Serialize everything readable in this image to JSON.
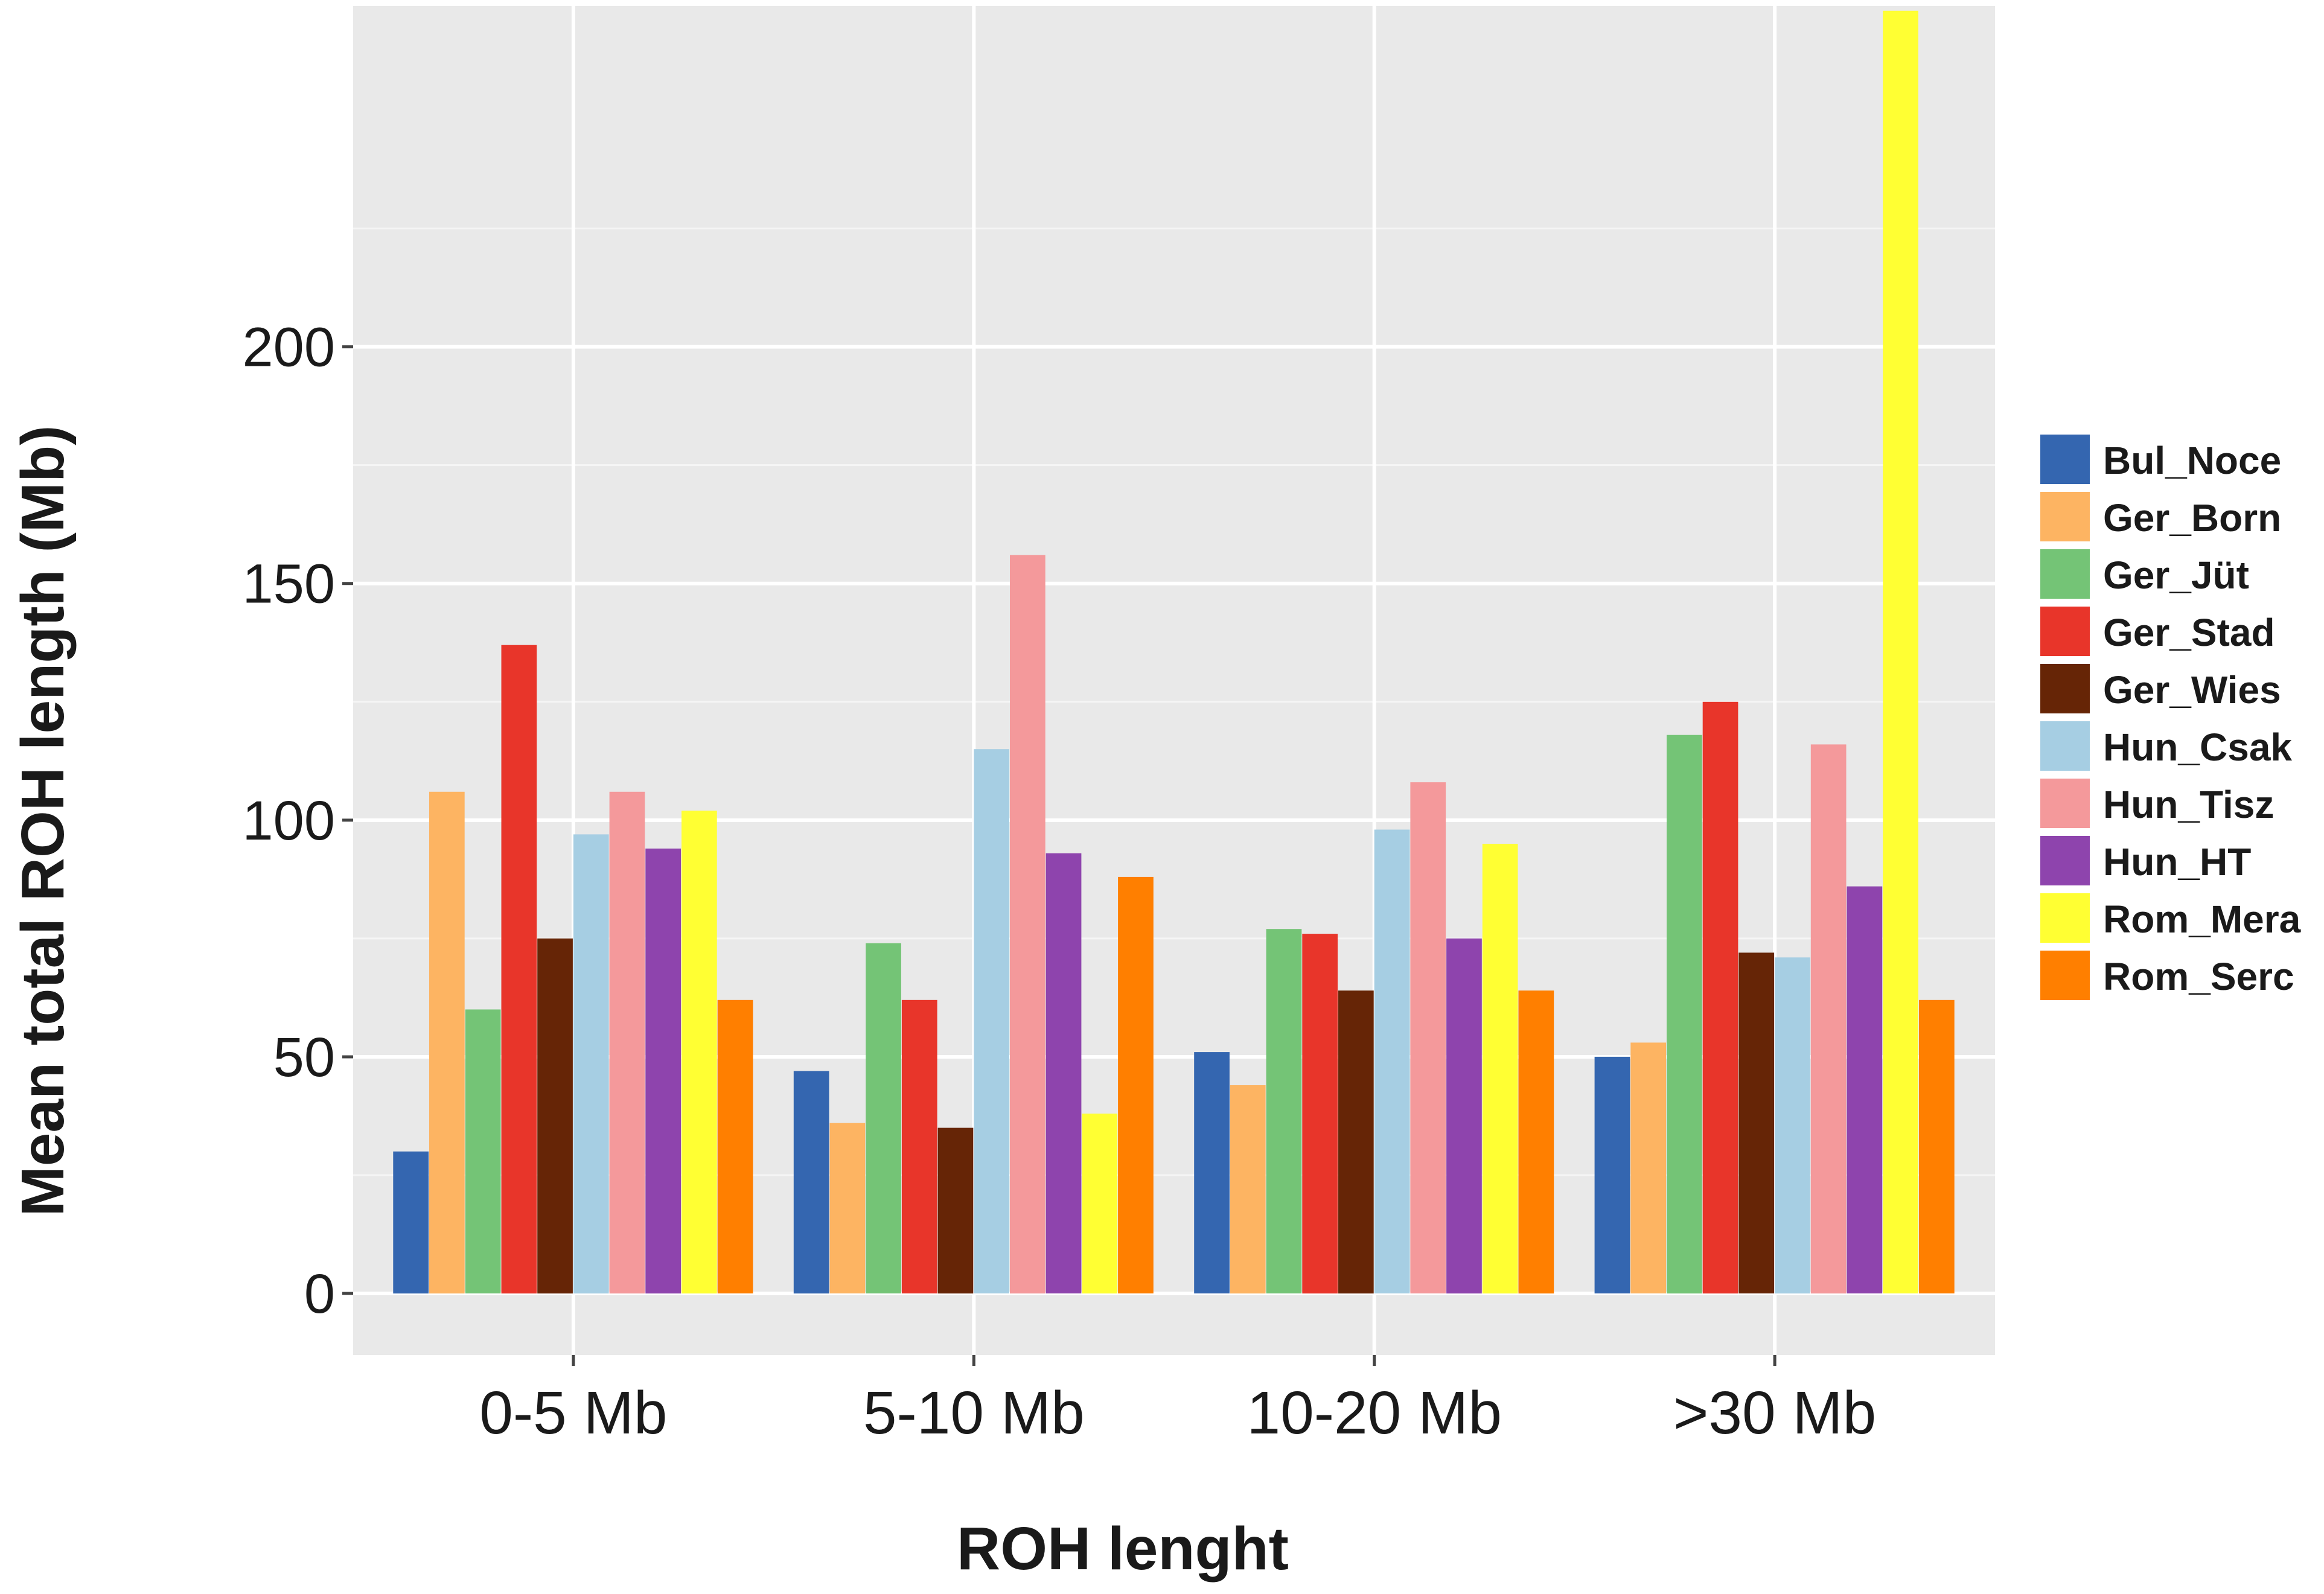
{
  "chart_data": {
    "type": "bar",
    "xlabel": "ROH lenght",
    "ylabel": "Mean total ROH length (Mb)",
    "ylim": [
      -13,
      272
    ],
    "yticks": [
      0,
      50,
      100,
      150,
      200
    ],
    "grid": true,
    "legend_position": "right",
    "categories": [
      "0-5 Mb",
      "5-10 Mb",
      "10-20 Mb",
      ">30 Mb"
    ],
    "series": [
      {
        "name": "Bul_Noce",
        "color": "#3466b0",
        "values": [
          30,
          47,
          51,
          50
        ]
      },
      {
        "name": "Ger_Born",
        "color": "#fdb462",
        "values": [
          106,
          36,
          44,
          53
        ]
      },
      {
        "name": "Ger_Jüt",
        "color": "#74c476",
        "values": [
          60,
          74,
          77,
          118
        ]
      },
      {
        "name": "Ger_Stad",
        "color": "#e8352a",
        "values": [
          137,
          62,
          76,
          125
        ]
      },
      {
        "name": "Ger_Wies",
        "color": "#662506",
        "values": [
          75,
          35,
          64,
          72
        ]
      },
      {
        "name": "Hun_Csak",
        "color": "#a6cee3",
        "values": [
          97,
          115,
          98,
          71
        ]
      },
      {
        "name": "Hun_Tisz",
        "color": "#f4999b",
        "values": [
          106,
          156,
          108,
          116
        ]
      },
      {
        "name": "Hun_HT",
        "color": "#8e44ad",
        "values": [
          94,
          93,
          75,
          86
        ]
      },
      {
        "name": "Rom_Mera",
        "color": "#ffff33",
        "values": [
          102,
          38,
          95,
          271
        ]
      },
      {
        "name": "Rom_Serc",
        "color": "#ff7f00",
        "values": [
          62,
          88,
          64,
          62
        ]
      }
    ]
  }
}
